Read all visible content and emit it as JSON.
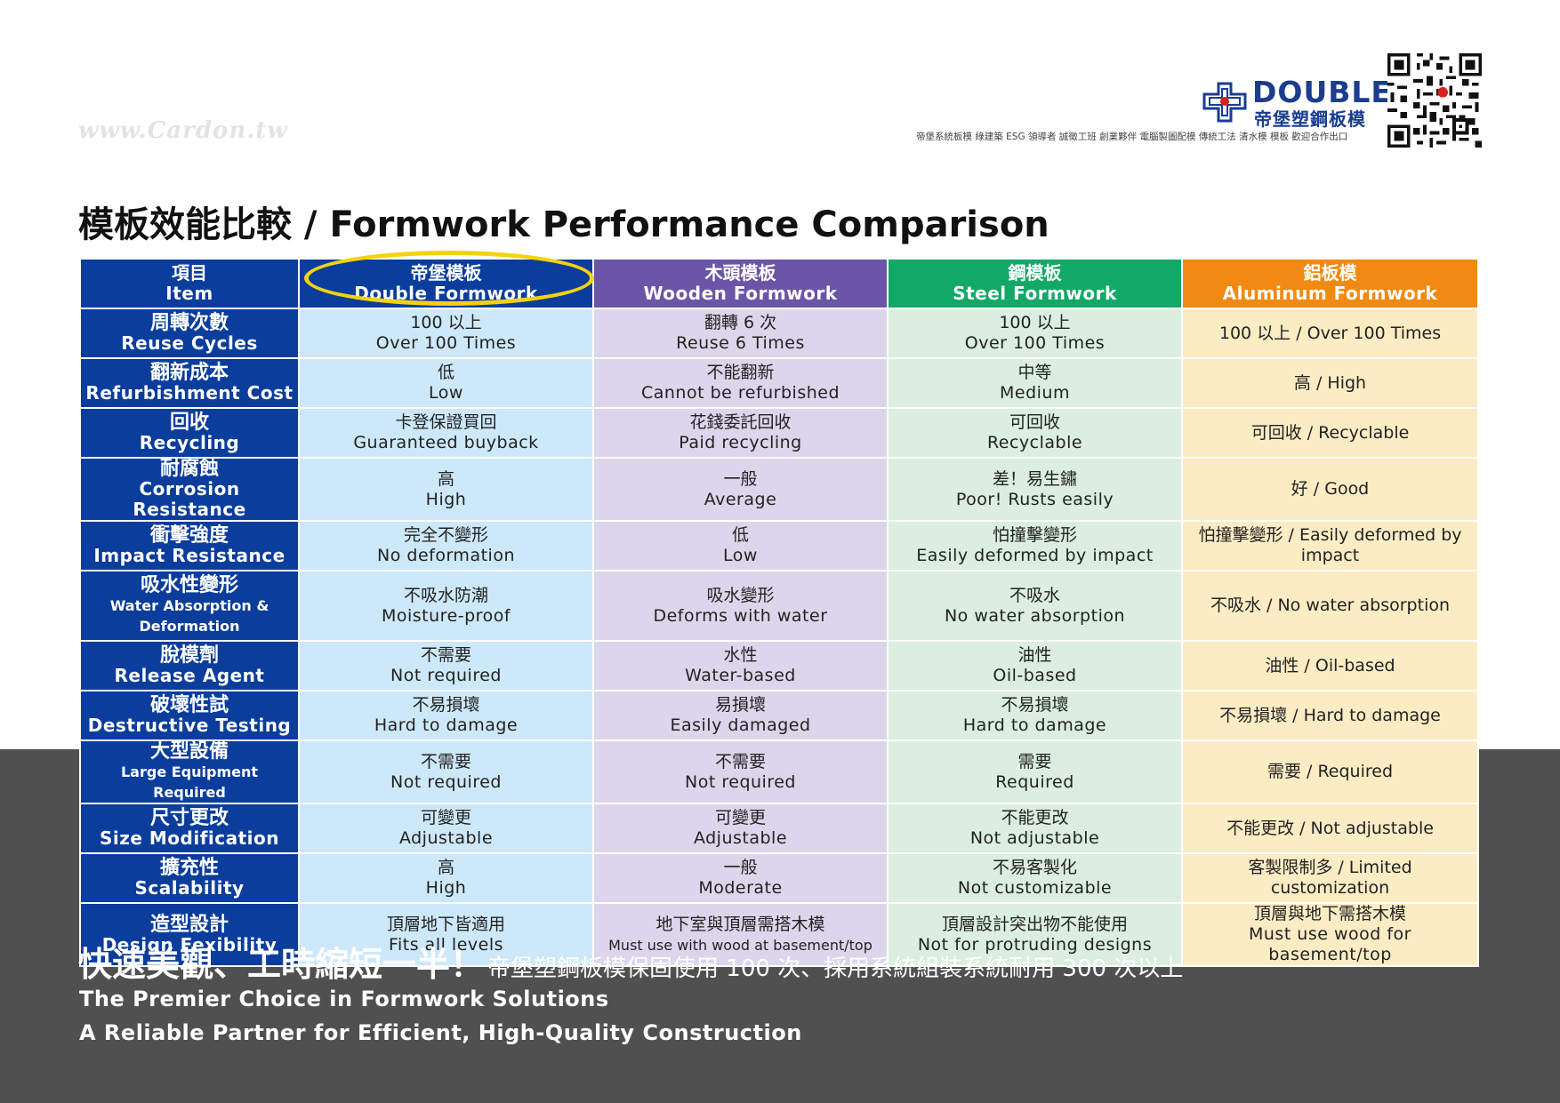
{
  "watermark": "www.Cardon.tw",
  "logo": {
    "brand": "DOUBLE",
    "brand_zh": "帝堡塑鋼板模"
  },
  "tagline": "帝堡系統板模  綠建築 ESG 領導者  誠徵工班  創業夥伴  電腦製圖配模  傳統工法  清水模  模板  歡迎合作出口",
  "title": "模板效能比較 / Formwork Performance Comparison",
  "colors": {
    "navy": "#0b3d9c",
    "purple": "#6a55a6",
    "green": "#12a866",
    "orange": "#f08a13",
    "highlight": "#f5d20f"
  },
  "headers": [
    {
      "zh": "項目",
      "en": "Item"
    },
    {
      "zh": "帝堡模板",
      "en": "Double Formwork"
    },
    {
      "zh": "木頭模板",
      "en": "Wooden Formwork"
    },
    {
      "zh": "鋼模板",
      "en": "Steel Formwork"
    },
    {
      "zh": "鋁板模",
      "en": "Aluminum Formwork"
    }
  ],
  "rows": [
    {
      "label_zh": "周轉次數",
      "label_en": "Reuse Cycles",
      "double": [
        "100 以上",
        "Over 100 Times"
      ],
      "wood": [
        "翻轉 6 次",
        "Reuse 6 Times"
      ],
      "steel": [
        "100 以上",
        "Over 100 Times"
      ],
      "alu": "100 以上 / Over 100 Times"
    },
    {
      "label_zh": "翻新成本",
      "label_en": "Refurbishment Cost",
      "double": [
        "低",
        "Low"
      ],
      "wood": [
        "不能翻新",
        "Cannot be refurbished"
      ],
      "steel": [
        "中等",
        "Medium"
      ],
      "alu": "高 / High"
    },
    {
      "label_zh": "回收",
      "label_en": "Recycling",
      "double": [
        "卡登保證買回",
        "Guaranteed buyback"
      ],
      "wood": [
        "花錢委託回收",
        "Paid recycling"
      ],
      "steel": [
        "可回收",
        "Recyclable"
      ],
      "alu": "可回收 / Recyclable"
    },
    {
      "label_zh": "耐腐蝕",
      "label_en": "Corrosion Resistance",
      "double": [
        "高",
        "High"
      ],
      "wood": [
        "一般",
        "Average"
      ],
      "steel": [
        "差！易生鏽",
        "Poor! Rusts easily"
      ],
      "alu": "好 / Good"
    },
    {
      "label_zh": "衝擊強度",
      "label_en": "Impact Resistance",
      "double": [
        "完全不變形",
        "No deformation"
      ],
      "wood": [
        "低",
        "Low"
      ],
      "steel": [
        "怕撞擊變形",
        "Easily deformed by impact"
      ],
      "alu": "怕撞擊變形 / Easily deformed by impact"
    },
    {
      "label_zh": "吸水性變形",
      "label_en": "Water Absorption & Deformation",
      "double": [
        "不吸水防潮",
        "Moisture-proof"
      ],
      "wood": [
        "吸水變形",
        "Deforms with water"
      ],
      "steel": [
        "不吸水",
        "No water absorption"
      ],
      "alu": "不吸水 / No water absorption"
    },
    {
      "label_zh": "脫模劑",
      "label_en": "Release Agent",
      "double": [
        "不需要",
        "Not required"
      ],
      "wood": [
        "水性",
        "Water-based"
      ],
      "steel": [
        "油性",
        "Oil-based"
      ],
      "alu": "油性 / Oil-based"
    },
    {
      "label_zh": "破壞性試",
      "label_en": "Destructive Testing",
      "double": [
        "不易損壞",
        "Hard to damage"
      ],
      "wood": [
        "易損壞",
        "Easily damaged"
      ],
      "steel": [
        "不易損壞",
        "Hard to damage"
      ],
      "alu": "不易損壞 / Hard to damage"
    },
    {
      "label_zh": "大型設備",
      "label_en": "Large Equipment Required",
      "double": [
        "不需要",
        "Not required"
      ],
      "wood": [
        "不需要",
        "Not required"
      ],
      "steel": [
        "需要",
        "Required"
      ],
      "alu": "需要 / Required"
    },
    {
      "label_zh": "尺寸更改",
      "label_en": "Size Modification",
      "double": [
        "可變更",
        "Adjustable"
      ],
      "wood": [
        "可變更",
        "Adjustable"
      ],
      "steel": [
        "不能更改",
        "Not adjustable"
      ],
      "alu": "不能更改 / Not adjustable"
    },
    {
      "label_zh": "擴充性",
      "label_en": "Scalability",
      "double": [
        "高",
        "High"
      ],
      "wood": [
        "一般",
        "Moderate"
      ],
      "steel": [
        "不易客製化",
        "Not customizable"
      ],
      "alu": "客製限制多 / Limited customization"
    },
    {
      "label_zh": "造型設計",
      "label_en": "Design Fexibility",
      "double": [
        "頂層地下皆適用",
        "Fits all levels"
      ],
      "wood": [
        "地下室與頂層需搭木模",
        "Must use with wood at basement/top"
      ],
      "steel": [
        "頂層設計突出物不能使用",
        "Not for protruding designs"
      ],
      "alu": [
        "頂層與地下需搭木模",
        "Must use wood for basement/top"
      ]
    }
  ],
  "slogan": {
    "big": "快速美觀、工時縮短一半！",
    "small": "帝堡塑鋼板模保固使用 100 次、採用系統組裝系統耐用 300 次以上"
  },
  "line2": "The Premier Choice in Formwork Solutions",
  "line3": "A Reliable Partner for Efficient, High-Quality Construction"
}
